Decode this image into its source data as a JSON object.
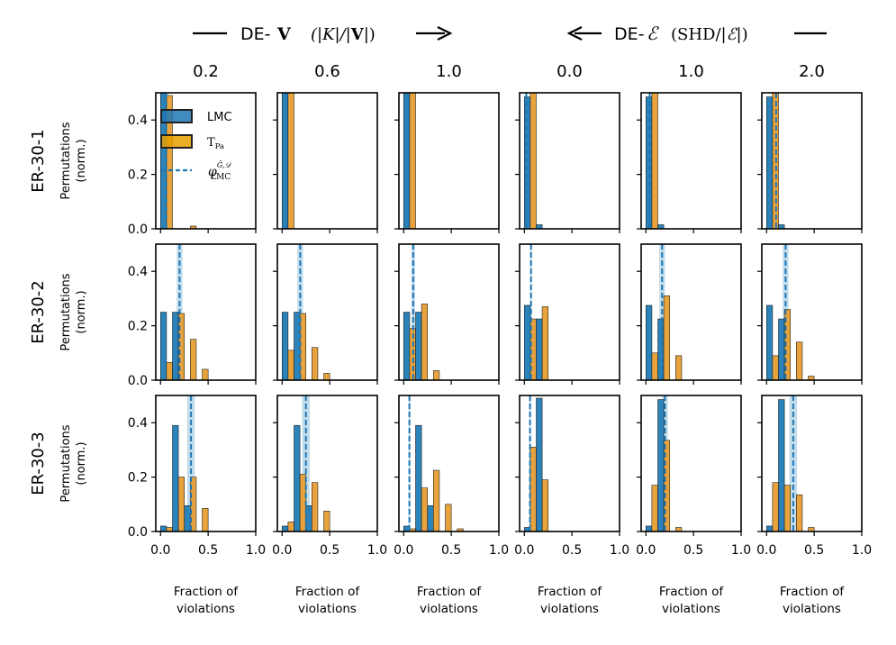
{
  "chart_data": {
    "type": "bar",
    "figure_type": "histogram-grid",
    "header": {
      "left": {
        "prefix": "DE-",
        "bold": "V",
        "math": "(|K|/|",
        "bold2": "V",
        "math_end": "|)",
        "arrow": "right"
      },
      "right": {
        "prefix": "DE-",
        "script": "ℰ",
        "math": "(SHD/|",
        "script2": "ℰ",
        "math_end": "|)",
        "arrow": "left"
      }
    },
    "columns": [
      "0.2",
      "0.6",
      "1.0",
      "0.0",
      "1.0",
      "2.0"
    ],
    "rows": [
      "ER-30-1",
      "ER-30-2",
      "ER-30-3"
    ],
    "ylabel": [
      "Permutations",
      "(norm.)"
    ],
    "xlabel": [
      "Fraction of",
      "violations"
    ],
    "xlim": [
      -0.05,
      1.0
    ],
    "ylim": [
      0,
      0.5
    ],
    "xticks": [
      0.0,
      0.5,
      1.0
    ],
    "yticks": [
      0.0,
      0.2,
      0.4
    ],
    "bins": [
      0.0,
      0.125,
      0.25,
      0.375,
      0.5,
      0.625,
      0.75,
      0.875
    ],
    "legend": {
      "position": "top-left",
      "items": [
        {
          "label": "LMC",
          "kind": "patch",
          "color": "#1f77b4"
        },
        {
          "label": "T",
          "sub": "Pa",
          "kind": "patch",
          "color": "#e69f00"
        },
        {
          "label": "φ",
          "sup": "Ĝ,𝒟",
          "sub": "LMC",
          "kind": "dashed-line",
          "color": "#1f77b4"
        }
      ]
    },
    "colors": {
      "lmc": "#2b83ba",
      "tpa": "#e8a33d",
      "edge": "#222222",
      "phi": "#1f77b4",
      "band": "#a6cee3"
    },
    "panels": [
      [
        {
          "lmc": [
            0.5,
            0,
            0,
            0,
            0,
            0,
            0,
            0
          ],
          "tpa": [
            0.49,
            0,
            0.01,
            0,
            0,
            0,
            0,
            0
          ],
          "phi": 0.06,
          "band": 0.02
        },
        {
          "lmc": [
            0.5,
            0,
            0,
            0,
            0,
            0,
            0,
            0
          ],
          "tpa": [
            0.5,
            0,
            0,
            0,
            0,
            0,
            0,
            0
          ],
          "phi": 0.05,
          "band": 0.02
        },
        {
          "lmc": [
            0.5,
            0,
            0,
            0,
            0,
            0,
            0,
            0
          ],
          "tpa": [
            0.5,
            0,
            0,
            0,
            0,
            0,
            0,
            0
          ],
          "phi": 0.05,
          "band": 0.02
        },
        {
          "lmc": [
            0.485,
            0.015,
            0,
            0,
            0,
            0,
            0,
            0
          ],
          "tpa": [
            0.5,
            0,
            0,
            0,
            0,
            0,
            0,
            0
          ],
          "phi": 0.02,
          "band": 0.01
        },
        {
          "lmc": [
            0.485,
            0.015,
            0,
            0,
            0,
            0,
            0,
            0
          ],
          "tpa": [
            0.5,
            0,
            0,
            0,
            0,
            0,
            0,
            0
          ],
          "phi": 0.04,
          "band": 0.01
        },
        {
          "lmc": [
            0.485,
            0.015,
            0,
            0,
            0,
            0,
            0,
            0
          ],
          "tpa": [
            0.5,
            0,
            0,
            0,
            0,
            0,
            0,
            0
          ],
          "phi": 0.1,
          "band": 0.02
        }
      ],
      [
        {
          "lmc": [
            0.25,
            0.25,
            0,
            0,
            0,
            0,
            0,
            0
          ],
          "tpa": [
            0.065,
            0.245,
            0.15,
            0.04,
            0,
            0,
            0,
            0
          ],
          "phi": 0.2,
          "band": 0.03
        },
        {
          "lmc": [
            0.25,
            0.25,
            0,
            0,
            0,
            0,
            0,
            0
          ],
          "tpa": [
            0.11,
            0.245,
            0.12,
            0.025,
            0,
            0,
            0,
            0
          ],
          "phi": 0.19,
          "band": 0.03
        },
        {
          "lmc": [
            0.25,
            0.25,
            0,
            0,
            0,
            0,
            0,
            0
          ],
          "tpa": [
            0.19,
            0.28,
            0.035,
            0,
            0,
            0,
            0,
            0
          ],
          "phi": 0.1,
          "band": 0.02
        },
        {
          "lmc": [
            0.275,
            0.225,
            0,
            0,
            0,
            0,
            0,
            0
          ],
          "tpa": [
            0.225,
            0.27,
            0,
            0,
            0,
            0,
            0,
            0
          ],
          "phi": 0.07,
          "band": 0.01
        },
        {
          "lmc": [
            0.275,
            0.225,
            0,
            0,
            0,
            0,
            0,
            0
          ],
          "tpa": [
            0.1,
            0.31,
            0.09,
            0,
            0,
            0,
            0,
            0
          ],
          "phi": 0.17,
          "band": 0.03
        },
        {
          "lmc": [
            0.275,
            0.225,
            0,
            0,
            0,
            0,
            0,
            0
          ],
          "tpa": [
            0.09,
            0.26,
            0.14,
            0.015,
            0,
            0,
            0,
            0
          ],
          "phi": 0.2,
          "band": 0.03
        }
      ],
      [
        {
          "lmc": [
            0.02,
            0.39,
            0.095,
            0,
            0,
            0,
            0,
            0
          ],
          "tpa": [
            0.015,
            0.2,
            0.2,
            0.085,
            0,
            0,
            0,
            0
          ],
          "phi": 0.32,
          "band": 0.04
        },
        {
          "lmc": [
            0.02,
            0.39,
            0.095,
            0,
            0,
            0,
            0,
            0
          ],
          "tpa": [
            0.035,
            0.21,
            0.18,
            0.075,
            0,
            0,
            0,
            0
          ],
          "phi": 0.25,
          "band": 0.04
        },
        {
          "lmc": [
            0.02,
            0.39,
            0.095,
            0,
            0,
            0,
            0,
            0
          ],
          "tpa": [
            0.01,
            0.16,
            0.225,
            0.1,
            0.01,
            0,
            0,
            0
          ],
          "phi": 0.06,
          "band": 0.01
        },
        {
          "lmc": [
            0.015,
            0.49,
            0,
            0,
            0,
            0,
            0,
            0
          ],
          "tpa": [
            0.31,
            0.19,
            0,
            0,
            0,
            0,
            0,
            0
          ],
          "phi": 0.06,
          "band": 0.01
        },
        {
          "lmc": [
            0.02,
            0.485,
            0,
            0,
            0,
            0,
            0,
            0
          ],
          "tpa": [
            0.17,
            0.335,
            0.015,
            0,
            0,
            0,
            0,
            0
          ],
          "phi": 0.2,
          "band": 0.03
        },
        {
          "lmc": [
            0.02,
            0.485,
            0,
            0,
            0,
            0,
            0,
            0
          ],
          "tpa": [
            0.18,
            0.17,
            0.135,
            0.015,
            0,
            0,
            0,
            0
          ],
          "phi": 0.28,
          "band": 0.04
        }
      ]
    ]
  }
}
